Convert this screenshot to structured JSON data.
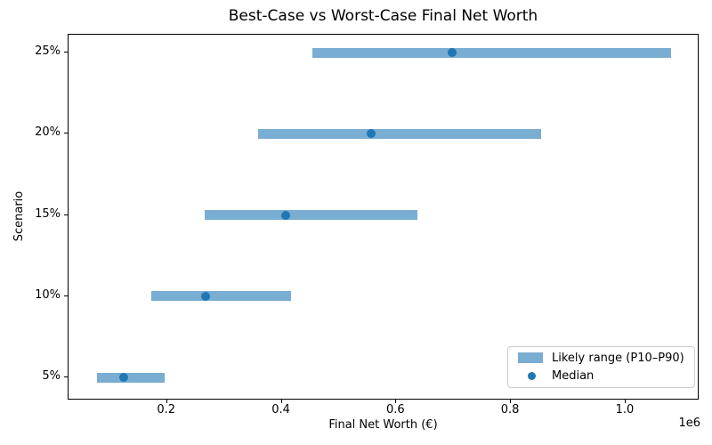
{
  "chart_data": {
    "type": "bar",
    "orientation": "horizontal-range",
    "title": "Best-Case vs Worst-Case Final Net Worth",
    "xlabel": "Final Net Worth (€)",
    "ylabel": "Scenario",
    "x_offset_text": "1e6",
    "categories": [
      "5%",
      "10%",
      "15%",
      "20%",
      "25%"
    ],
    "series": [
      {
        "name": "P10",
        "values": [
          78000,
          172000,
          265000,
          359000,
          454000
        ]
      },
      {
        "name": "Median",
        "values": [
          124000,
          267000,
          407000,
          556000,
          698000
        ]
      },
      {
        "name": "P90",
        "values": [
          195000,
          417000,
          637000,
          852000,
          1079000
        ]
      }
    ],
    "xlim": [
      28000,
      1129000
    ],
    "xticks": {
      "values": [
        200000,
        400000,
        600000,
        800000,
        1000000
      ],
      "labels": [
        "0.2",
        "0.4",
        "0.6",
        "0.8",
        "1.0"
      ]
    },
    "grid": false,
    "legend_position": "lower right",
    "legend_labels": [
      "Likely range (P10–P90)",
      "Median"
    ],
    "colors": {
      "range_bar": "#79add2",
      "median_dot": "#1f77b4",
      "spine": "#000000",
      "legend_border": "#cccccc"
    }
  }
}
